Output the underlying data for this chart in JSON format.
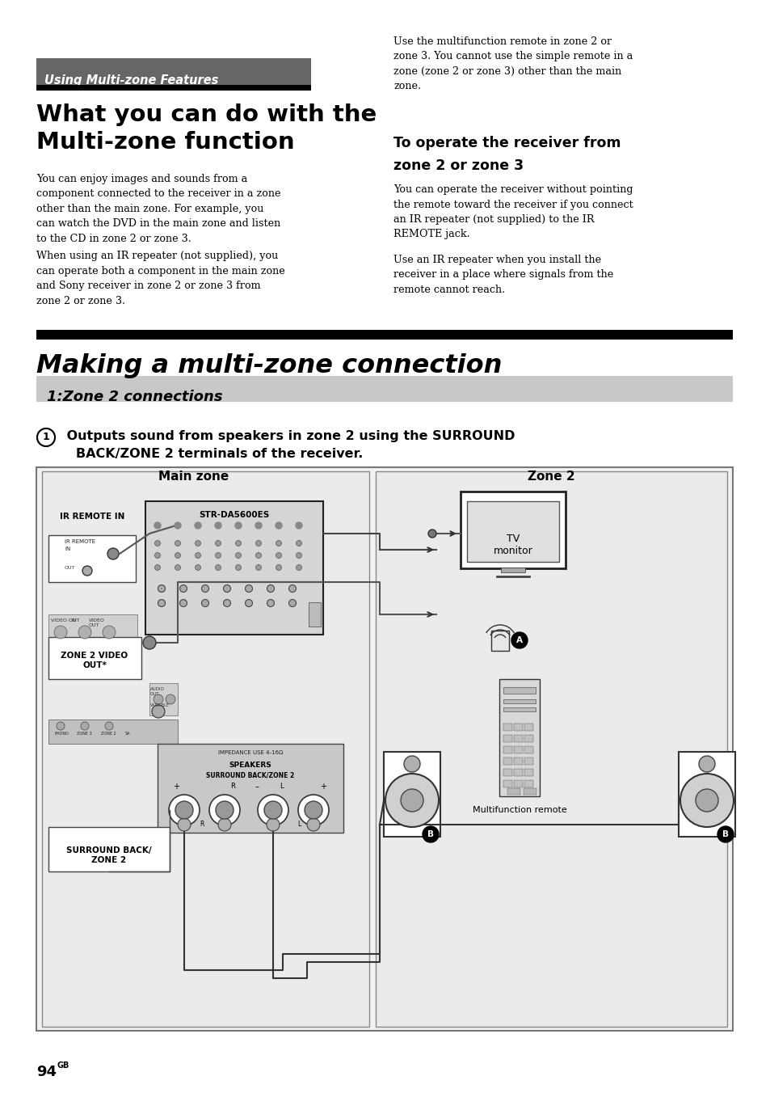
{
  "page_bg": "#ffffff",
  "header_bg": "#666666",
  "header_text": "Using Multi-zone Features",
  "header_text_color": "#ffffff",
  "title_line1": "What you can do with the",
  "title_line2": "Multi-zone function",
  "body_left_p1": "You can enjoy images and sounds from a\ncomponent connected to the receiver in a zone\nother than the main zone. For example, you\ncan watch the DVD in the main zone and listen\nto the CD in zone 2 or zone 3.",
  "body_left_p2": "When using an IR repeater (not supplied), you\ncan operate both a component in the main zone\nand Sony receiver in zone 2 or zone 3 from\nzone 2 or zone 3.",
  "body_right_top": "Use the multifunction remote in zone 2 or\nzone 3. You cannot use the simple remote in a\nzone (zone 2 or zone 3) other than the main\nzone.",
  "section2_header_line1": "To operate the receiver from",
  "section2_header_line2": "zone 2 or zone 3",
  "section2_body1": "You can operate the receiver without pointing\nthe remote toward the receiver if you connect\nan IR repeater (not supplied) to the IR\nREMOTE jack.",
  "section2_body2": "Use an IR repeater when you install the\nreceiver in a place where signals from the\nremote cannot reach.",
  "making_title": "Making a multi-zone connection",
  "zone_section_title": "1:Zone 2 connections",
  "zone_section_bg": "#c8c8c8",
  "main_zone_label": "Main zone",
  "zone2_label": "Zone 2",
  "footer_num": "94",
  "footer_sup": "GB",
  "receiver_label": "STR-DA5600ES",
  "ir_remote_label": "IR REMOTE IN",
  "zone2_video_label": "ZONE 2 VIDEO\nOUT*",
  "surround_label": "SURROUND BACK/\nZONE 2",
  "tv_label": "TV\nmonitor",
  "multifunction_label": "Multifunction remote",
  "numbered_line1": " Outputs sound from speakers in zone 2 using the SURROUND",
  "numbered_line2": "   BACK/ZONE 2 terminals of the receiver."
}
